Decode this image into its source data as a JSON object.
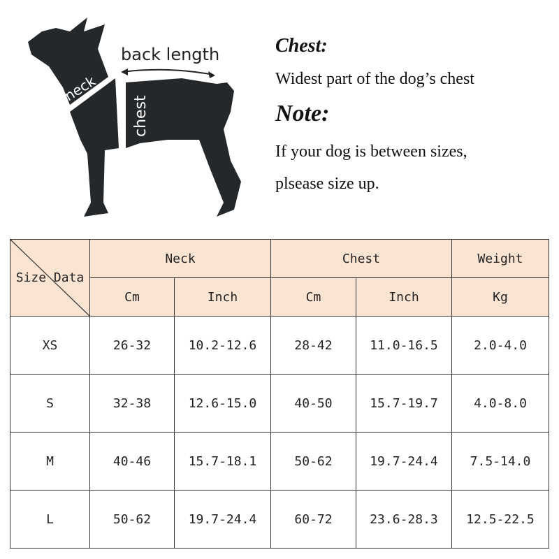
{
  "diagram": {
    "back_length": "back length",
    "neck": "neck",
    "chest": "chest"
  },
  "info": {
    "chest_heading": "Chest:",
    "chest_desc": "Widest part of the dog’s chest",
    "note_heading": "Note:",
    "note_line1": "If your dog is between sizes,",
    "note_line2": "plsease size up."
  },
  "table": {
    "corner": "Size Data",
    "groups": [
      "Neck",
      "Chest",
      "Weight"
    ],
    "units": [
      "Cm",
      "Inch",
      "Cm",
      "Inch",
      "Kg"
    ],
    "rows": [
      [
        "XS",
        "26-32",
        "10.2-12.6",
        "28-42",
        "11.0-16.5",
        "2.0-4.0"
      ],
      [
        "S",
        "32-38",
        "12.6-15.0",
        "40-50",
        "15.7-19.7",
        "4.0-8.0"
      ],
      [
        "M",
        "40-46",
        "15.7-18.1",
        "50-62",
        "19.7-24.4",
        "7.5-14.0"
      ],
      [
        "L",
        "50-62",
        "19.7-24.4",
        "60-72",
        "23.6-28.3",
        "12.5-22.5"
      ]
    ]
  },
  "colors": {
    "header_bg": "#fce4d2",
    "silhouette": "#25282b"
  }
}
